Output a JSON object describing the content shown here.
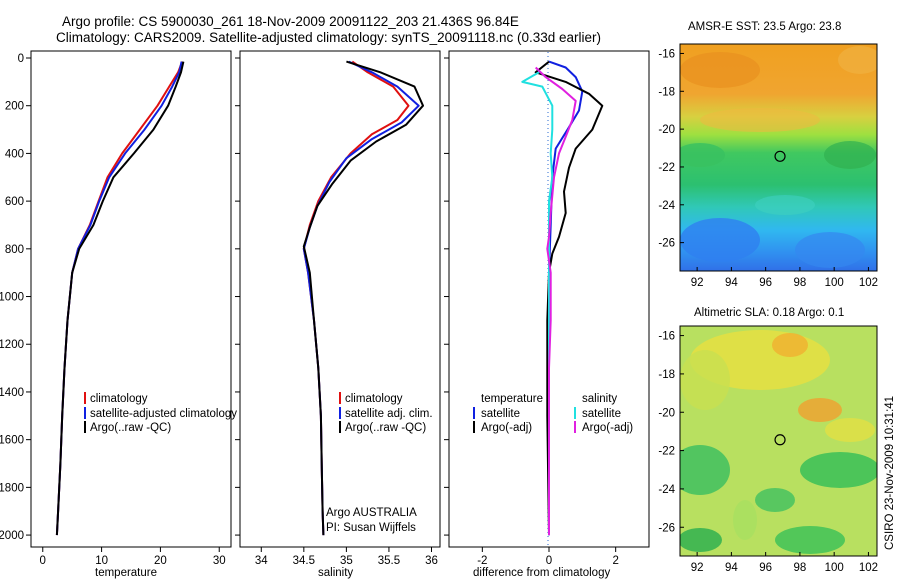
{
  "figure": {
    "title_line1": "Argo profile: CS 5900030_261 18-Nov-2009 20091122_203 21.436S 96.84E",
    "title_line2": "Climatology: CARS2009. Satellite-adjusted climatology: synTS_20091118.nc (0.33d earlier)",
    "side_credit": "CSIRO 23-Nov-2009 10:31:41",
    "argo_label1": "Argo AUSTRALIA",
    "argo_label2": "PI: Susan Wijffels"
  },
  "colors": {
    "red": "#e01010",
    "blue": "#1020e0",
    "black": "#000000",
    "cyan": "#20e0e0",
    "magenta": "#e020e0"
  },
  "chart_data": [
    {
      "type": "line",
      "id": "temperature",
      "xlabel": "temperature",
      "ylabel": "",
      "xlim": [
        -2,
        32
      ],
      "ylim": [
        2050,
        0
      ],
      "xticks": [
        0,
        10,
        20,
        30
      ],
      "yticks": [
        0,
        200,
        400,
        600,
        800,
        1000,
        1200,
        1400,
        1600,
        1800,
        2000
      ],
      "legend": {
        "position": "lower-right",
        "entries": [
          "climatology",
          "satellite-adjusted climatology",
          "Argo(..raw -QC)"
        ]
      },
      "series": [
        {
          "name": "climatology",
          "color": "red",
          "points": [
            [
              23.7,
              15
            ],
            [
              23,
              60
            ],
            [
              21.5,
              120
            ],
            [
              19.5,
              200
            ],
            [
              16.5,
              300
            ],
            [
              13.5,
              400
            ],
            [
              11,
              500
            ],
            [
              9.5,
              600
            ],
            [
              8,
              700
            ],
            [
              6,
              800
            ],
            [
              5,
              900
            ],
            [
              4.2,
              1100
            ],
            [
              3.7,
              1300
            ],
            [
              3.3,
              1500
            ],
            [
              3,
              1700
            ],
            [
              2.6,
              1900
            ],
            [
              2.4,
              2000
            ]
          ]
        },
        {
          "name": "satellite-adjusted climatology",
          "color": "blue",
          "points": [
            [
              23.6,
              15
            ],
            [
              23.2,
              60
            ],
            [
              22,
              120
            ],
            [
              20.2,
              200
            ],
            [
              17.3,
              300
            ],
            [
              14,
              400
            ],
            [
              11.3,
              500
            ],
            [
              9.6,
              600
            ],
            [
              8.1,
              700
            ],
            [
              6,
              800
            ],
            [
              5,
              900
            ],
            [
              4.2,
              1100
            ],
            [
              3.7,
              1300
            ],
            [
              3.3,
              1500
            ],
            [
              3,
              1700
            ],
            [
              2.6,
              1900
            ],
            [
              2.4,
              2000
            ]
          ]
        },
        {
          "name": "Argo(..raw -QC)",
          "color": "black",
          "points": [
            [
              23.9,
              15
            ],
            [
              23.5,
              60
            ],
            [
              22.6,
              120
            ],
            [
              21.3,
              200
            ],
            [
              18.8,
              300
            ],
            [
              15.5,
              400
            ],
            [
              12,
              500
            ],
            [
              10.2,
              600
            ],
            [
              8.6,
              700
            ],
            [
              6.2,
              800
            ],
            [
              5,
              900
            ],
            [
              4.2,
              1100
            ],
            [
              3.7,
              1300
            ],
            [
              3.3,
              1500
            ],
            [
              3,
              1700
            ],
            [
              2.6,
              1900
            ],
            [
              2.4,
              2000
            ]
          ]
        }
      ]
    },
    {
      "type": "line",
      "id": "salinity",
      "xlabel": "salinity",
      "ylabel": "",
      "xlim": [
        33.75,
        36.1
      ],
      "ylim": [
        2050,
        0
      ],
      "xticks": [
        34,
        34.5,
        35,
        35.5,
        36
      ],
      "yticks": [
        0,
        200,
        400,
        600,
        800,
        1000,
        1200,
        1400,
        1600,
        1800,
        2000
      ],
      "legend": {
        "position": "lower-right",
        "entries": [
          "climatology",
          "satellite adj. clim.",
          "Argo(..raw -QC)"
        ]
      },
      "series": [
        {
          "name": "climatology",
          "color": "red",
          "points": [
            [
              35.07,
              15
            ],
            [
              35.25,
              60
            ],
            [
              35.55,
              120
            ],
            [
              35.73,
              200
            ],
            [
              35.6,
              260
            ],
            [
              35.3,
              320
            ],
            [
              35.05,
              400
            ],
            [
              34.82,
              500
            ],
            [
              34.67,
              600
            ],
            [
              34.57,
              700
            ],
            [
              34.5,
              800
            ],
            [
              34.55,
              900
            ],
            [
              34.62,
              1100
            ],
            [
              34.67,
              1300
            ],
            [
              34.7,
              1500
            ],
            [
              34.71,
              1700
            ],
            [
              34.72,
              1900
            ],
            [
              34.73,
              2000
            ]
          ]
        },
        {
          "name": "satellite adj. clim.",
          "color": "blue",
          "points": [
            [
              35.03,
              15
            ],
            [
              35.3,
              60
            ],
            [
              35.6,
              120
            ],
            [
              35.85,
              200
            ],
            [
              35.65,
              270
            ],
            [
              35.3,
              340
            ],
            [
              35,
              420
            ],
            [
              34.8,
              520
            ],
            [
              34.66,
              620
            ],
            [
              34.57,
              710
            ],
            [
              34.5,
              800
            ],
            [
              34.55,
              900
            ],
            [
              34.62,
              1100
            ],
            [
              34.67,
              1300
            ],
            [
              34.7,
              1500
            ],
            [
              34.71,
              1700
            ],
            [
              34.72,
              1900
            ],
            [
              34.73,
              2000
            ]
          ]
        },
        {
          "name": "Argo(..raw -QC)",
          "color": "black",
          "points": [
            [
              35,
              15
            ],
            [
              35.4,
              60
            ],
            [
              35.8,
              120
            ],
            [
              35.9,
              200
            ],
            [
              35.7,
              280
            ],
            [
              35.35,
              350
            ],
            [
              35.05,
              430
            ],
            [
              34.83,
              530
            ],
            [
              34.66,
              620
            ],
            [
              34.57,
              710
            ],
            [
              34.5,
              790
            ],
            [
              34.57,
              900
            ],
            [
              34.62,
              1100
            ],
            [
              34.67,
              1300
            ],
            [
              34.7,
              1500
            ],
            [
              34.71,
              1700
            ],
            [
              34.72,
              1900
            ],
            [
              34.73,
              2000
            ]
          ]
        }
      ]
    },
    {
      "type": "line",
      "id": "difference",
      "xlabel": "difference from climatology",
      "ylabel": "",
      "xlim": [
        -3,
        3
      ],
      "ylim": [
        2050,
        0
      ],
      "xticks": [
        -2,
        0,
        2
      ],
      "yticks": [
        0,
        200,
        400,
        600,
        800,
        1000,
        1200,
        1400,
        1600,
        1800,
        2000
      ],
      "legend": {
        "position": "lower",
        "groups": [
          {
            "title": "temperature",
            "entries": [
              "satellite",
              "Argo(-adj)"
            ]
          },
          {
            "title": "salinity",
            "entries": [
              "satellite",
              "Argo(-adj)"
            ]
          }
        ]
      },
      "series": [
        {
          "name": "temperature satellite",
          "color": "blue",
          "points": [
            [
              0,
              15
            ],
            [
              0.5,
              40
            ],
            [
              0.8,
              80
            ],
            [
              1,
              140
            ],
            [
              0.9,
              220
            ],
            [
              0.6,
              290
            ],
            [
              0.2,
              380
            ],
            [
              0.1,
              500
            ],
            [
              0.05,
              700
            ],
            [
              0,
              900
            ],
            [
              0,
              1500
            ],
            [
              0,
              2000
            ]
          ]
        },
        {
          "name": "temperature Argo(-adj)",
          "color": "black",
          "points": [
            [
              0,
              15
            ],
            [
              -0.4,
              60
            ],
            [
              0.5,
              100
            ],
            [
              1.2,
              150
            ],
            [
              1.6,
              200
            ],
            [
              1.3,
              300
            ],
            [
              0.8,
              380
            ],
            [
              0.6,
              460
            ],
            [
              0.45,
              560
            ],
            [
              0.5,
              650
            ],
            [
              0.3,
              750
            ],
            [
              0.1,
              820
            ],
            [
              0,
              900
            ],
            [
              -0.05,
              1100
            ],
            [
              -0.05,
              1500
            ],
            [
              -0.02,
              1800
            ],
            [
              0,
              2000
            ]
          ]
        },
        {
          "name": "salinity satellite",
          "color": "cyan",
          "points": [
            [
              -0.3,
              60
            ],
            [
              -0.8,
              100
            ],
            [
              -0.2,
              120
            ],
            [
              0.1,
              200
            ],
            [
              0.1,
              300
            ],
            [
              0.05,
              400
            ],
            [
              0.1,
              500
            ],
            [
              0,
              600
            ],
            [
              0,
              700
            ],
            [
              0,
              800
            ],
            [
              0,
              1000
            ],
            [
              0,
              1500
            ],
            [
              0,
              2000
            ]
          ]
        },
        {
          "name": "salinity Argo(-adj)",
          "color": "magenta",
          "points": [
            [
              -0.4,
              40
            ],
            [
              -0.1,
              80
            ],
            [
              0.4,
              130
            ],
            [
              0.8,
              180
            ],
            [
              0.7,
              260
            ],
            [
              0.5,
              330
            ],
            [
              0.3,
              400
            ],
            [
              0.15,
              500
            ],
            [
              0.05,
              650
            ],
            [
              0,
              750
            ],
            [
              -0.05,
              800
            ],
            [
              0.05,
              900
            ],
            [
              0.05,
              1100
            ],
            [
              0,
              1300
            ],
            [
              0,
              1500
            ],
            [
              0,
              1700
            ],
            [
              0,
              2000
            ]
          ]
        }
      ]
    },
    {
      "type": "heatmap",
      "id": "sst",
      "title": "AMSR-E SST: 23.5  Argo: 23.8",
      "xlim": [
        91,
        102.5
      ],
      "ylim": [
        -27.5,
        -15.5
      ],
      "xticks": [
        92,
        94,
        96,
        98,
        100,
        102
      ],
      "yticks": [
        -16,
        -18,
        -20,
        -22,
        -24,
        -26
      ],
      "marker": {
        "lon": 96.84,
        "lat": -21.436
      }
    },
    {
      "type": "heatmap",
      "id": "sla",
      "title": "Altimetric SLA: 0.18  Argo: 0.1",
      "xlim": [
        91,
        102.5
      ],
      "ylim": [
        -27.5,
        -15.5
      ],
      "xticks": [
        92,
        94,
        96,
        98,
        100,
        102
      ],
      "yticks": [
        -16,
        -18,
        -20,
        -22,
        -24,
        -26
      ],
      "marker": {
        "lon": 96.84,
        "lat": -21.436
      }
    }
  ]
}
